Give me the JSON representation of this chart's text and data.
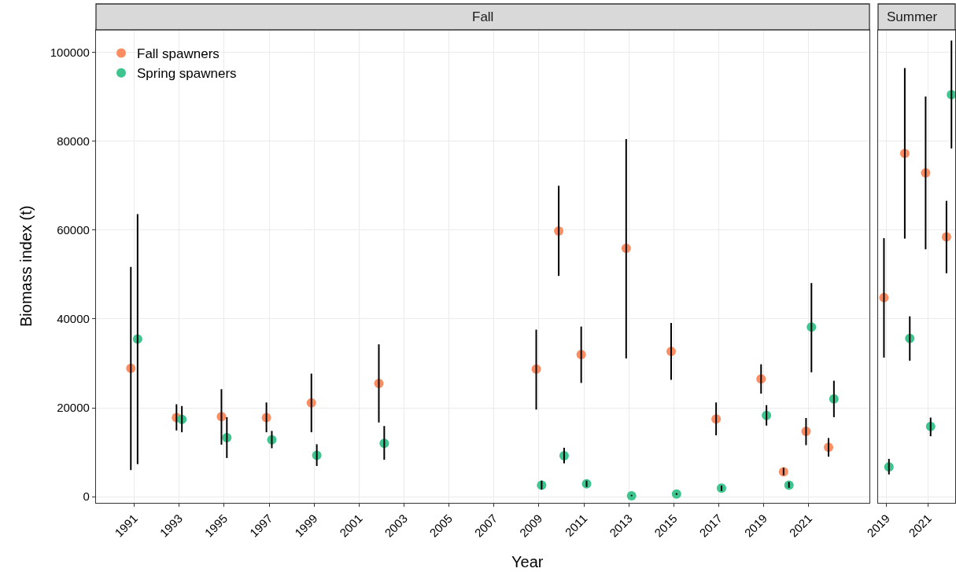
{
  "chart_data": [
    {
      "type": "scatter",
      "title": "Fall",
      "xlabel": "Year",
      "ylabel": "Biomass index (t)",
      "xlim": [
        1989.3,
        2023.7
      ],
      "xticks": [
        1991,
        1993,
        1995,
        1997,
        1999,
        2001,
        2003,
        2005,
        2007,
        2009,
        2011,
        2013,
        2015,
        2017,
        2019,
        2021
      ],
      "ylim": [
        -1400,
        105100
      ],
      "yticks": [
        0,
        20000,
        40000,
        60000,
        80000,
        100000
      ],
      "grid": true,
      "legend": "top left",
      "marker": "circle",
      "series": [
        {
          "name": "Fall spawners",
          "color": "#fc8d62",
          "x": [
            1990.85,
            1992.88,
            1994.88,
            1996.88,
            1998.88,
            2001.88,
            2008.88,
            2009.88,
            2010.88,
            2012.88,
            2014.88,
            2016.88,
            2018.88,
            2019.88,
            2020.88,
            2021.88
          ],
          "values": [
            28900,
            17800,
            18000,
            17800,
            21100,
            25500,
            28700,
            59800,
            32000,
            55900,
            32700,
            17500,
            26500,
            5600,
            14700,
            11100
          ],
          "errors": [
            [
              6000,
              51700
            ],
            [
              14900,
              20800
            ],
            [
              11700,
              24200
            ],
            [
              14500,
              21200
            ],
            [
              14500,
              27700
            ],
            [
              16700,
              34300
            ],
            [
              19600,
              37600
            ],
            [
              49700,
              70000
            ],
            [
              25600,
              38300
            ],
            [
              31100,
              80500
            ],
            [
              26300,
              39100
            ],
            [
              13800,
              21200
            ],
            [
              23200,
              29800
            ],
            [
              4800,
              6500
            ],
            [
              11600,
              17700
            ],
            [
              9000,
              13200
            ]
          ]
        },
        {
          "name": "Spring spawners",
          "color": "#3dc48f",
          "x": [
            1991.15,
            1993.12,
            1995.12,
            1997.12,
            1999.12,
            2002.12,
            2009.12,
            2010.12,
            2011.12,
            2013.12,
            2015.12,
            2017.12,
            2019.12,
            2020.12,
            2021.12,
            2022.12
          ],
          "values": [
            35500,
            17400,
            13300,
            12800,
            9300,
            12000,
            2600,
            9200,
            2900,
            200,
            600,
            1900,
            18300,
            2600,
            38200,
            22000
          ],
          "errors": [
            [
              7300,
              63600
            ],
            [
              14500,
              20400
            ],
            [
              8700,
              17900
            ],
            [
              10900,
              14800
            ],
            [
              6900,
              11800
            ],
            [
              8300,
              15900
            ],
            [
              1600,
              3600
            ],
            [
              7500,
              11000
            ],
            [
              2200,
              3600
            ],
            [
              100,
              400
            ],
            [
              400,
              800
            ],
            [
              1300,
              2500
            ],
            [
              16000,
              20600
            ],
            [
              2000,
              3300
            ],
            [
              28000,
              48100
            ],
            [
              17900,
              26100
            ]
          ]
        }
      ]
    },
    {
      "type": "scatter",
      "title": "Summer",
      "xlim": [
        2018.6,
        2022.3
      ],
      "xticks": [
        2019,
        2021
      ],
      "ylim": [
        -1400,
        105100
      ],
      "yticks": [
        0,
        20000,
        40000,
        60000,
        80000,
        100000
      ],
      "grid": true,
      "tick_labels": "x",
      "marker": "circle",
      "series": [
        {
          "color": "#fc8d62",
          "x": [
            2018.88,
            2019.88,
            2020.88,
            2021.88
          ],
          "values": [
            44800,
            77300,
            72900,
            58500
          ],
          "errors": [
            [
              31300,
              58200
            ],
            [
              58100,
              96500
            ],
            [
              55700,
              90100
            ],
            [
              50300,
              66600
            ]
          ]
        },
        {
          "color": "#3dc48f",
          "x": [
            2019.12,
            2020.12,
            2021.12,
            2022.12
          ],
          "values": [
            6700,
            35600,
            15800,
            90500
          ],
          "errors": [
            [
              5000,
              8500
            ],
            [
              30600,
              40600
            ],
            [
              13600,
              17800
            ],
            [
              78400,
              102700
            ]
          ]
        }
      ]
    }
  ]
}
